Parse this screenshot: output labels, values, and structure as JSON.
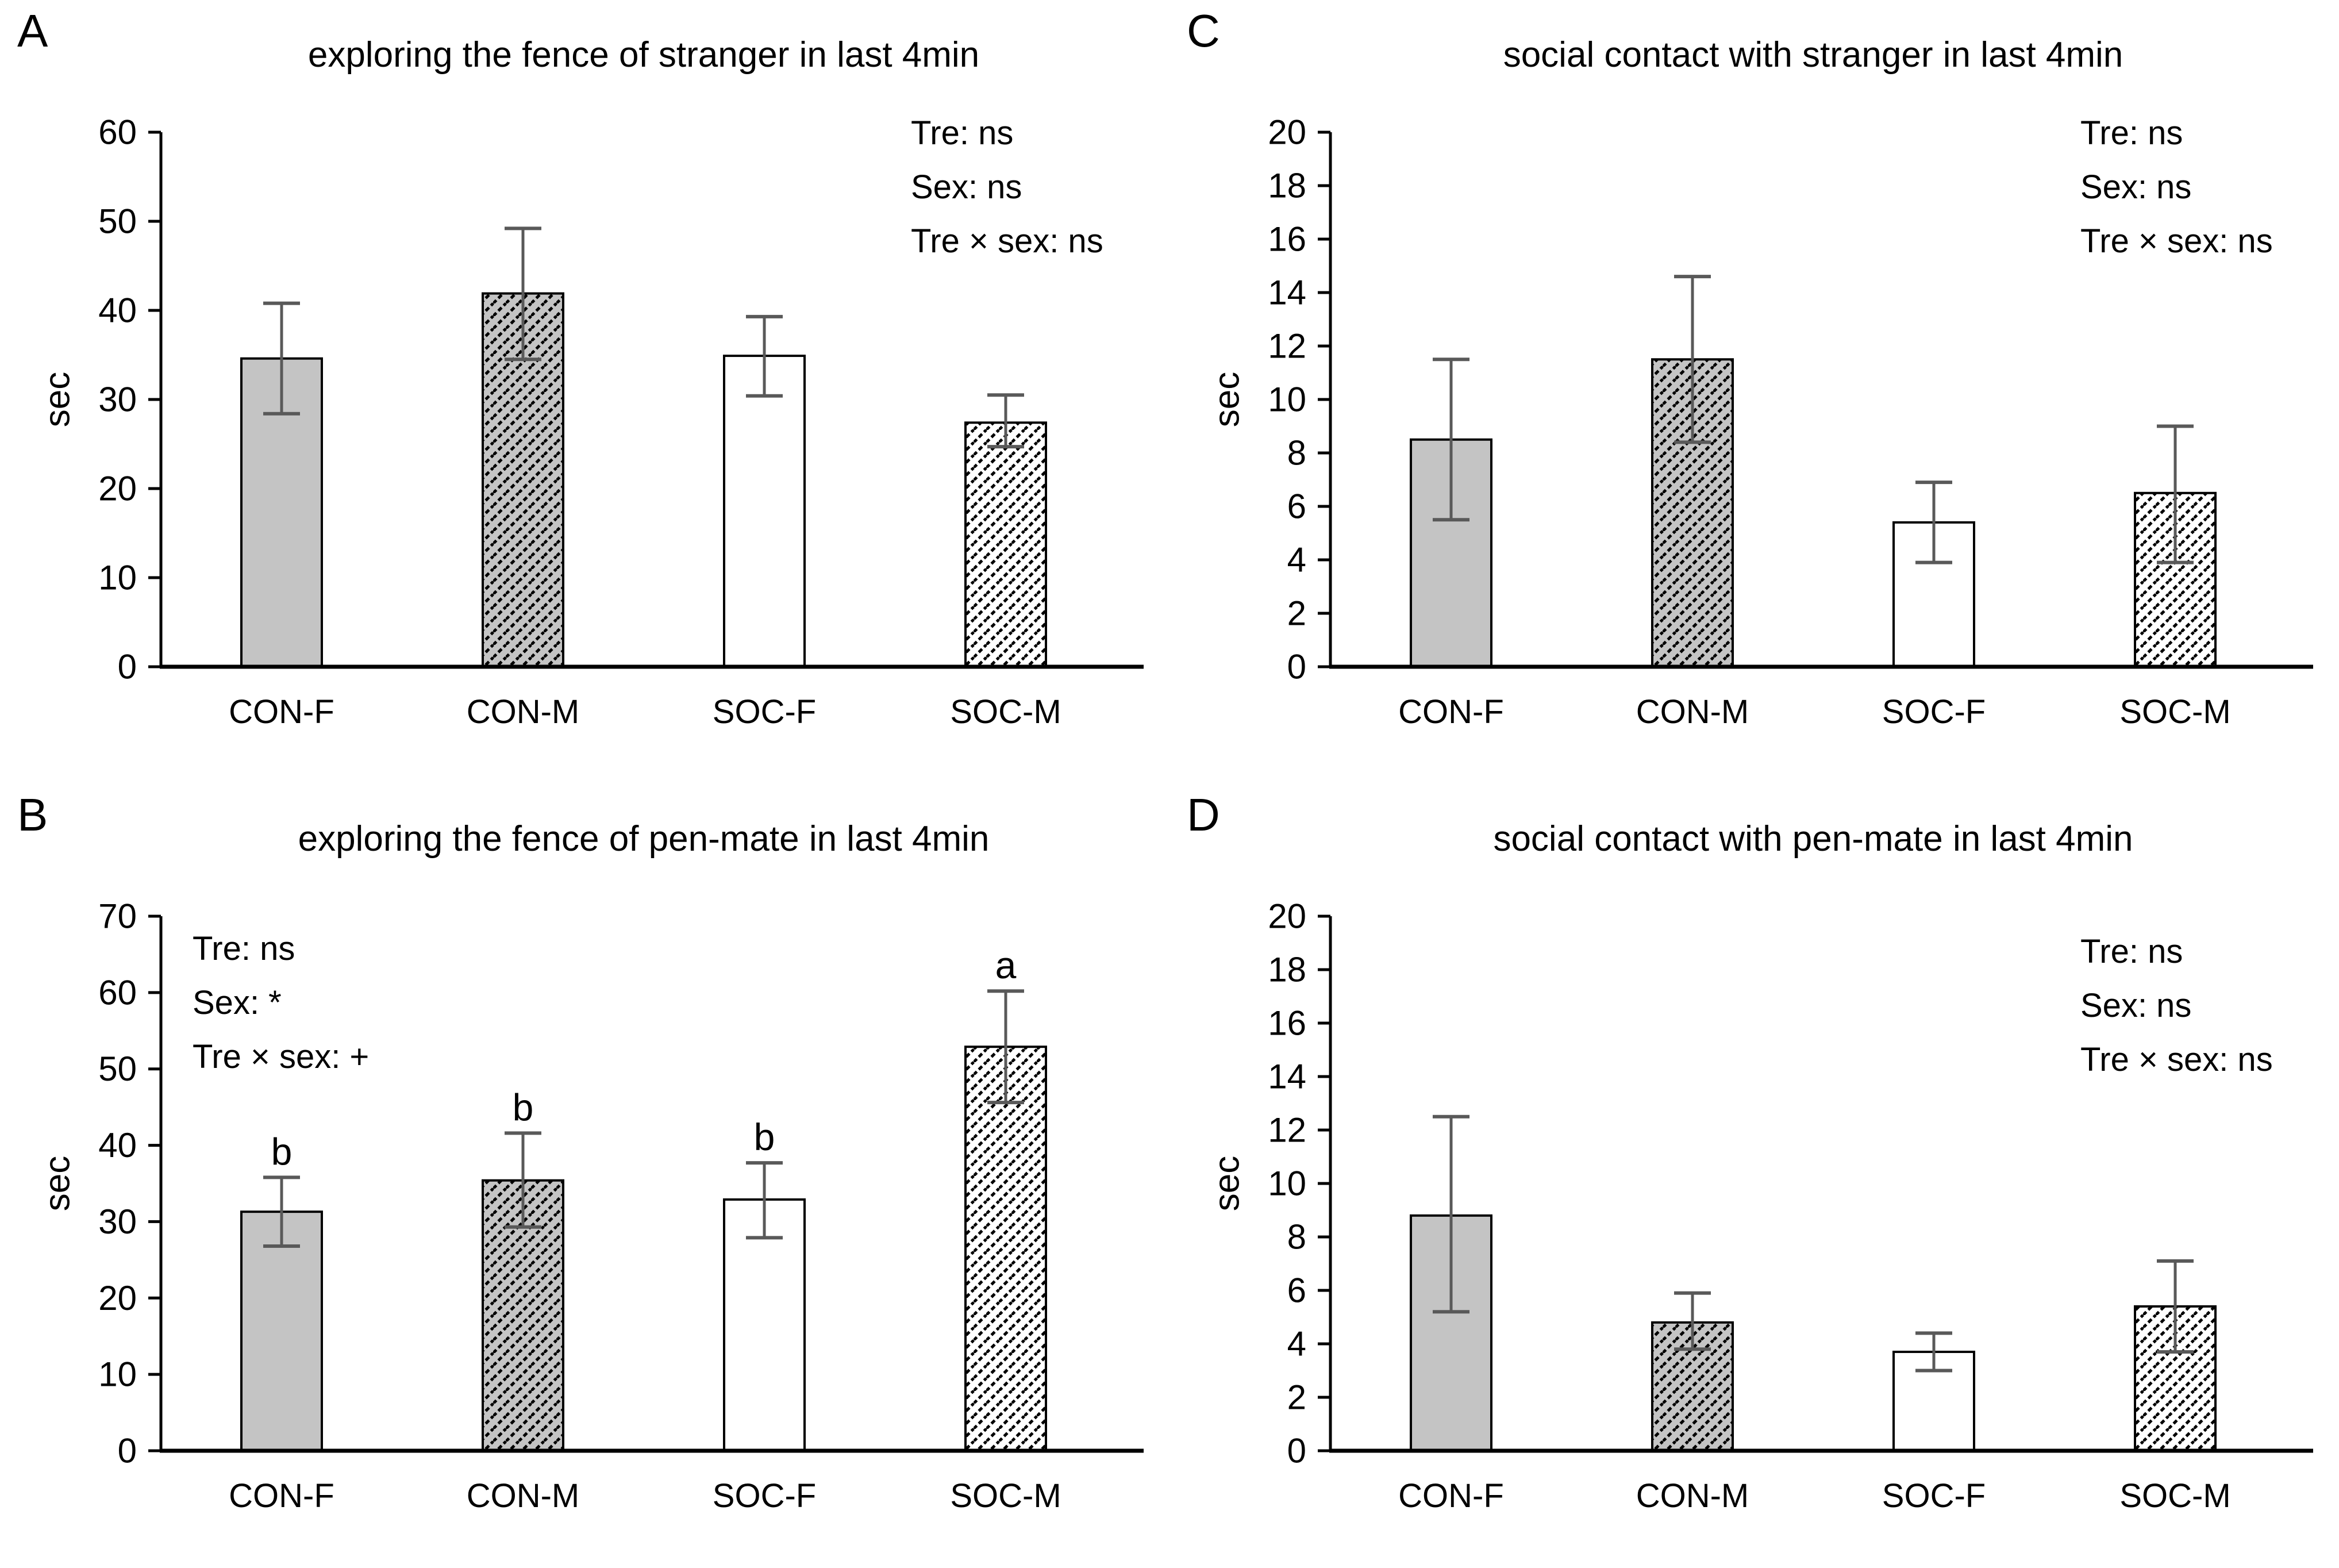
{
  "figure": {
    "background": "#ffffff",
    "panel_order": [
      "A",
      "C",
      "B",
      "D"
    ]
  },
  "colors": {
    "text": "#000000",
    "axis": "#000000",
    "bar_border": "#000000",
    "bar_gray": "#c4c4c4",
    "bar_white": "#ffffff",
    "hatch_line": "#000000",
    "error_bar": "#595959"
  },
  "chart_data": [
    {
      "panel": "A",
      "type": "bar",
      "title": "exploring the fence of stranger in last 4min",
      "ylabel": "sec",
      "ylim": [
        0,
        60
      ],
      "ytick_step": 10,
      "grid": "off",
      "legend": "none",
      "categories": [
        "CON-F",
        "CON-M",
        "SOC-F",
        "SOC-M"
      ],
      "values": [
        34.6,
        41.9,
        34.9,
        27.4
      ],
      "error_low": [
        28.4,
        34.5,
        30.4,
        24.7
      ],
      "error_high": [
        40.8,
        49.2,
        39.3,
        30.5
      ],
      "bar_styles": [
        "gray",
        "gray-hatch",
        "white",
        "white-hatch"
      ],
      "sig_letters": [
        "",
        "",
        "",
        ""
      ],
      "annotations": [
        "Tre: ns",
        "Sex: ns",
        "Tre × sex: ns"
      ],
      "annotation_position": "top-right"
    },
    {
      "panel": "C",
      "type": "bar",
      "title": "social contact with stranger in last 4min",
      "ylabel": "sec",
      "ylim": [
        0,
        20
      ],
      "ytick_step": 2,
      "grid": "off",
      "legend": "none",
      "categories": [
        "CON-F",
        "CON-M",
        "SOC-F",
        "SOC-M"
      ],
      "values": [
        8.5,
        11.5,
        5.4,
        6.5
      ],
      "error_low": [
        5.5,
        8.4,
        3.9,
        3.9
      ],
      "error_high": [
        11.5,
        14.6,
        6.9,
        9.0
      ],
      "bar_styles": [
        "gray",
        "gray-hatch",
        "white",
        "white-hatch"
      ],
      "sig_letters": [
        "",
        "",
        "",
        ""
      ],
      "annotations": [
        "Tre: ns",
        "Sex: ns",
        "Tre × sex: ns"
      ],
      "annotation_position": "top-right"
    },
    {
      "panel": "B",
      "type": "bar",
      "title": "exploring the fence of pen-mate in last 4min",
      "ylabel": "sec",
      "ylim": [
        0,
        70
      ],
      "ytick_step": 10,
      "grid": "off",
      "legend": "none",
      "categories": [
        "CON-F",
        "CON-M",
        "SOC-F",
        "SOC-M"
      ],
      "values": [
        31.3,
        35.4,
        32.9,
        52.9
      ],
      "error_low": [
        26.8,
        29.3,
        27.9,
        45.6
      ],
      "error_high": [
        35.8,
        41.6,
        37.7,
        60.2
      ],
      "bar_styles": [
        "gray",
        "gray-hatch",
        "white",
        "white-hatch"
      ],
      "sig_letters": [
        "b",
        "b",
        "b",
        "a"
      ],
      "annotations": [
        "Tre: ns",
        "Sex: *",
        "Tre × sex: +"
      ],
      "annotation_position": "top-left"
    },
    {
      "panel": "D",
      "type": "bar",
      "title": "social contact with pen-mate in last 4min",
      "ylabel": "sec",
      "ylim": [
        0,
        20
      ],
      "ytick_step": 2,
      "grid": "off",
      "legend": "none",
      "categories": [
        "CON-F",
        "CON-M",
        "SOC-F",
        "SOC-M"
      ],
      "values": [
        8.8,
        4.8,
        3.7,
        5.4
      ],
      "error_low": [
        5.2,
        3.8,
        3.0,
        3.7
      ],
      "error_high": [
        12.5,
        5.9,
        4.4,
        7.1
      ],
      "bar_styles": [
        "gray",
        "gray-hatch",
        "white",
        "white-hatch"
      ],
      "sig_letters": [
        "",
        "",
        "",
        ""
      ],
      "annotations": [
        "Tre: ns",
        "Sex: ns",
        "Tre × sex: ns"
      ],
      "annotation_position": "top-right-low"
    }
  ]
}
